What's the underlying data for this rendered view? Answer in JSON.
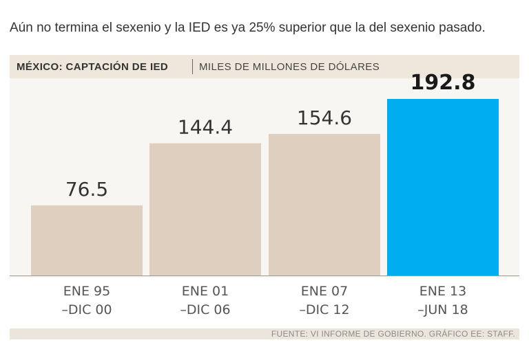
{
  "subtitle": "Aún no termina el sexenio y la IED es ya 25% superior que la del sexenio pasado.",
  "header": {
    "title": "MÉXICO: CAPTACIÓN DE IED",
    "units": "MILES DE MILLONES DE DÓLARES"
  },
  "footer": {
    "source": "FUENTE: VI INFORME DE GOBIERNO. GRÁFICO EE: STAFF."
  },
  "colors": {
    "bar_default": "#dfcfbe",
    "bar_highlight": "#00aeef",
    "axis": "#9a9a9a",
    "value_text": "#333333",
    "value_highlight_text": "#1a1a1a",
    "tick_text": "#555555"
  },
  "chart_data": {
    "type": "bar",
    "title": "MÉXICO: CAPTACIÓN DE IED",
    "ylabel": "MILES DE MILLONES DE DÓLARES",
    "xlabel": "",
    "categories": [
      [
        "ENE 95",
        "–DIC 00"
      ],
      [
        "ENE 01",
        "–DIC 06"
      ],
      [
        "ENE 07",
        "–DIC 12"
      ],
      [
        "ENE 13",
        "–JUN 18"
      ]
    ],
    "values": [
      76.5,
      144.4,
      154.6,
      192.8
    ],
    "value_labels": [
      "76.5",
      "144.4",
      "154.6",
      "192.8"
    ],
    "highlight_index": 3,
    "ylim": [
      0,
      200
    ]
  }
}
